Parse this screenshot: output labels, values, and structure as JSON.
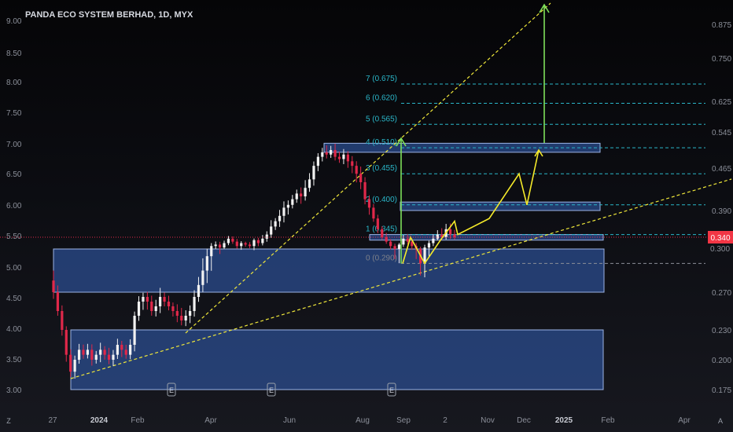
{
  "chart_title": "PANDA ECO SYSTEM BERHAD, 1D, MYX",
  "left_axis": {
    "ticks": [
      "9.00",
      "8.50",
      "8.00",
      "7.50",
      "7.00",
      "6.50",
      "6.00",
      "5.50",
      "5.00",
      "4.50",
      "4.00",
      "3.50",
      "3.00"
    ]
  },
  "right_axis": {
    "ticks": [
      "0.875",
      "0.750",
      "0.625",
      "0.545",
      "0.465",
      "0.390",
      "0.270",
      "0.230",
      "0.200",
      "0.175"
    ],
    "current_price": "0.340",
    "hidden_tick": "0.300"
  },
  "x_axis": {
    "labels": [
      {
        "text": "27",
        "bold": false
      },
      {
        "text": "2024",
        "bold": true
      },
      {
        "text": "Feb",
        "bold": false
      },
      {
        "text": "Apr",
        "bold": false
      },
      {
        "text": "Jun",
        "bold": false
      },
      {
        "text": "Aug",
        "bold": false
      },
      {
        "text": "Sep",
        "bold": false
      },
      {
        "text": "2",
        "bold": false
      },
      {
        "text": "Nov",
        "bold": false
      },
      {
        "text": "Dec",
        "bold": false
      },
      {
        "text": "2025",
        "bold": true
      },
      {
        "text": "Feb",
        "bold": false
      },
      {
        "text": "Apr",
        "bold": false
      }
    ]
  },
  "event_markers": [
    "E",
    "E",
    "E"
  ],
  "corner_left": "Z",
  "corner_right": "A",
  "chart_data": {
    "type": "candlestick",
    "symbol": "PANDA ECO SYSTEM BERHAD",
    "timeframe": "1D",
    "exchange": "MYX",
    "current_price": 0.34,
    "fib_levels": [
      {
        "label": "7 (0.675)",
        "value": 0.675
      },
      {
        "label": "6 (0.620)",
        "value": 0.62
      },
      {
        "label": "5 (0.565)",
        "value": 0.565
      },
      {
        "label": "4 (0.510)",
        "value": 0.51
      },
      {
        "label": "3 (0.455)",
        "value": 0.455
      },
      {
        "label": "2 (0.400)",
        "value": 0.4
      },
      {
        "label": "1 (0.345)",
        "value": 0.345
      },
      {
        "label": "0 (0.290)",
        "value": 0.29
      }
    ],
    "zones": [
      {
        "low": 0.175,
        "high": 0.23
      },
      {
        "low": 0.27,
        "high": 0.3
      },
      {
        "low": 0.33,
        "high": 0.345
      },
      {
        "low": 0.39,
        "high": 0.405
      },
      {
        "low": 0.5,
        "high": 0.52
      }
    ],
    "price_path_close": [
      0.27,
      0.25,
      0.23,
      0.205,
      0.19,
      0.2,
      0.21,
      0.205,
      0.21,
      0.2,
      0.205,
      0.21,
      0.205,
      0.2,
      0.205,
      0.215,
      0.21,
      0.205,
      0.215,
      0.245,
      0.26,
      0.265,
      0.26,
      0.25,
      0.255,
      0.265,
      0.26,
      0.255,
      0.25,
      0.245,
      0.24,
      0.245,
      0.25,
      0.265,
      0.275,
      0.285,
      0.295,
      0.31,
      0.315,
      0.305,
      0.32,
      0.335,
      0.325,
      0.31,
      0.32,
      0.315,
      0.31,
      0.33,
      0.32,
      0.335,
      0.345,
      0.36,
      0.37,
      0.38,
      0.395,
      0.4,
      0.41,
      0.42,
      0.415,
      0.43,
      0.445,
      0.47,
      0.49,
      0.5,
      0.495,
      0.505,
      0.49,
      0.485,
      0.495,
      0.48,
      0.47,
      0.455,
      0.44,
      0.41,
      0.395,
      0.375,
      0.355,
      0.34,
      0.325,
      0.31,
      0.3,
      0.315,
      0.335,
      0.325,
      0.31,
      0.3,
      0.29,
      0.305,
      0.32,
      0.335,
      0.345,
      0.34,
      0.355,
      0.345,
      0.34
    ],
    "projection_path": [
      0.345,
      0.37,
      0.385,
      0.375,
      0.41,
      0.44,
      0.4,
      0.47,
      0.51
    ],
    "target_arrows": [
      0.875,
      0.51
    ]
  }
}
